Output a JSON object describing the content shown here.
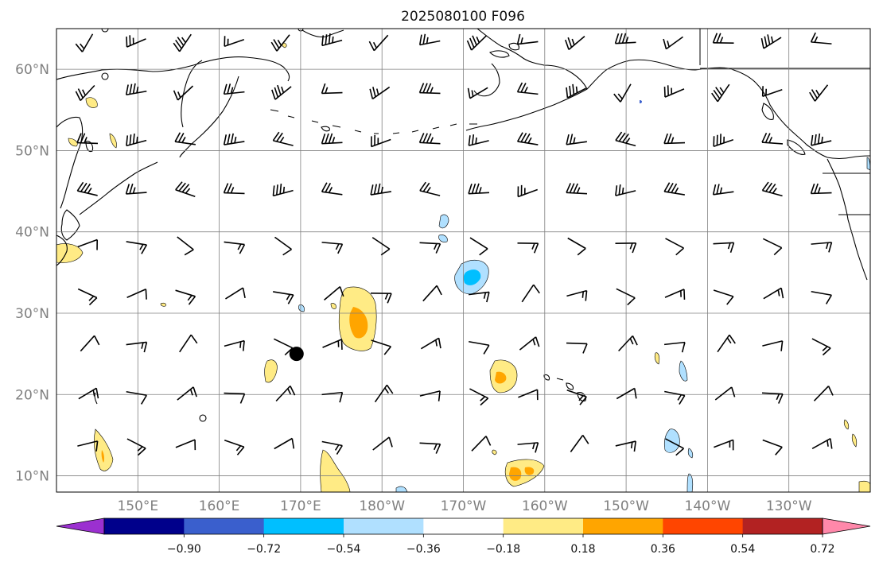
{
  "title": "2025080100 F096",
  "map": {
    "lat_labels": [
      "60°N",
      "50°N",
      "40°N",
      "30°N",
      "20°N",
      "10°N"
    ],
    "lon_labels": [
      "150°E",
      "160°E",
      "170°E",
      "180°W",
      "170°W",
      "160°W",
      "150°W",
      "140°W",
      "130°W"
    ],
    "lat_values": [
      60,
      50,
      40,
      30,
      20,
      10
    ],
    "lon_values": [
      150,
      160,
      170,
      180,
      190,
      200,
      210,
      220,
      230
    ],
    "extent": {
      "lon_min": 140,
      "lon_max": 240,
      "lat_min": 8,
      "lat_max": 65
    },
    "grid": true,
    "storm_marker": {
      "lon": 169.5,
      "lat": 25
    }
  },
  "colorbar": {
    "extend": "both",
    "levels": [
      -0.9,
      -0.72,
      -0.54,
      -0.36,
      -0.18,
      0.18,
      0.36,
      0.54,
      0.72,
      0.9
    ],
    "tick_labels": [
      "−0.90",
      "−0.72",
      "−0.54",
      "−0.36",
      "−0.18",
      "0.18",
      "0.36",
      "0.54",
      "0.72",
      "0.90"
    ],
    "colors": [
      "#9b30d0",
      "#00008b",
      "#3a5fcd",
      "#00bfff",
      "#b0e0ff",
      "#ffffff",
      "#ffeb85",
      "#ffa500",
      "#ff4500",
      "#b22222",
      "#ff88aa"
    ]
  },
  "legend_colors": {
    "coast": "#000000",
    "grid": "#808080",
    "barb": "#000000"
  }
}
